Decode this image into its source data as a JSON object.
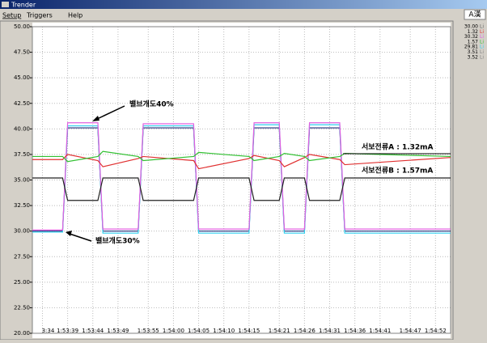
{
  "window": {
    "title": "Trender",
    "ime": "A漢"
  },
  "menu": [
    "Setup",
    "Triggers",
    "Help"
  ],
  "chart_data": {
    "type": "line",
    "x": [
      "1:53:32",
      "1:53:38",
      "1:53:39",
      "1:53:45",
      "1:53:46",
      "1:53:53",
      "1:53:54",
      "1:54:04",
      "1:54:05",
      "1:54:15",
      "1:54:16",
      "1:54:21",
      "1:54:22",
      "1:54:26",
      "1:54:27",
      "1:54:33",
      "1:54:34",
      "1:54:55"
    ],
    "series": [
      {
        "color": "#1e2a78",
        "values": [
          30,
          30,
          40.1,
          40.1,
          30,
          30,
          40.1,
          40.1,
          30,
          30,
          40.1,
          40.1,
          30,
          30,
          40.1,
          40.1,
          30,
          30
        ]
      },
      {
        "color": "#30d0f0",
        "values": [
          29.9,
          29.9,
          40.3,
          40.3,
          29.8,
          29.8,
          40.3,
          40.3,
          29.8,
          29.8,
          40.4,
          40.4,
          29.8,
          29.8,
          40.4,
          40.4,
          29.8,
          29.8
        ]
      },
      {
        "color": "#e060e0",
        "values": [
          30.1,
          30.1,
          40.6,
          40.6,
          30.2,
          30.2,
          40.5,
          40.5,
          30.2,
          30.2,
          40.6,
          40.6,
          30.2,
          30.2,
          40.6,
          40.6,
          30.2,
          30.2
        ]
      },
      {
        "color": "#202020",
        "values": [
          35.2,
          35.2,
          33,
          33,
          35.2,
          35.2,
          33,
          33,
          35.2,
          35.2,
          33,
          33,
          35.2,
          35.2,
          33,
          33,
          35.2,
          35.2
        ]
      },
      {
        "color": "#e03030",
        "values": [
          37,
          37,
          37.5,
          36.9,
          36.3,
          37.1,
          37.3,
          36.9,
          36.1,
          37.1,
          37.4,
          36.9,
          36.3,
          37.2,
          37.5,
          37,
          36.5,
          37.2
        ]
      },
      {
        "color": "#30c030",
        "values": [
          37.3,
          37.3,
          36.8,
          37.3,
          37.8,
          37.3,
          36.9,
          37.3,
          37.7,
          37.3,
          36.9,
          37.3,
          37.6,
          37.3,
          36.9,
          37.3,
          37.6,
          37.3
        ]
      }
    ],
    "xlim": [
      "1:53:32",
      "1:54:55"
    ],
    "xticks": [
      {
        "value": "1:53:34",
        "label": "3:34"
      },
      "1:53:39",
      "1:53:44",
      "1:53:49",
      "1:53:55",
      "1:54:00",
      "1:54:05",
      "1:54:10",
      "1:54:15",
      "1:54:21",
      "1:54:26",
      "1:54:31",
      "1:54:36",
      "1:54:41",
      "1:54:47",
      "1:54:52"
    ],
    "ylim": [
      20,
      50
    ],
    "yticks": [
      {
        "value": 20,
        "label": "20.00"
      },
      {
        "value": 22.5,
        "label": "22.50"
      },
      {
        "value": 25,
        "label": "25.00"
      },
      {
        "value": 27.5,
        "label": "27.50"
      },
      {
        "value": 30,
        "label": "30.00"
      },
      {
        "value": 32.5,
        "label": "32.50"
      },
      {
        "value": 35,
        "label": "35.00"
      },
      {
        "value": 37.5,
        "label": "37.50"
      },
      {
        "value": 40,
        "label": "40.00"
      },
      {
        "value": 42.5,
        "label": "42.50"
      },
      {
        "value": 45,
        "label": "45.00"
      },
      {
        "value": 47.5,
        "label": "47.50"
      },
      {
        "value": 50,
        "label": "50.00"
      }
    ],
    "grid": true,
    "annotations": [
      "밸브개도40%",
      "밸브개도30%",
      "서보전류A : 1.32mA",
      "서보전류B : 1.57mA"
    ]
  },
  "side_panel": [
    {
      "value": "30.00",
      "tag": "Li",
      "color": "#606060"
    },
    {
      "value": "1.32",
      "tag": "Li",
      "color": "#e03030"
    },
    {
      "value": "30.32",
      "tag": "Li",
      "color": "#e060e0"
    },
    {
      "value": "1.57",
      "tag": "Li",
      "color": "#30c030"
    },
    {
      "value": "29.81",
      "tag": "Li",
      "color": "#30d0f0"
    },
    {
      "value": "3.51",
      "tag": "Li",
      "color": "#808080"
    },
    {
      "value": "3.52",
      "tag": "Li",
      "color": "#808080"
    }
  ]
}
